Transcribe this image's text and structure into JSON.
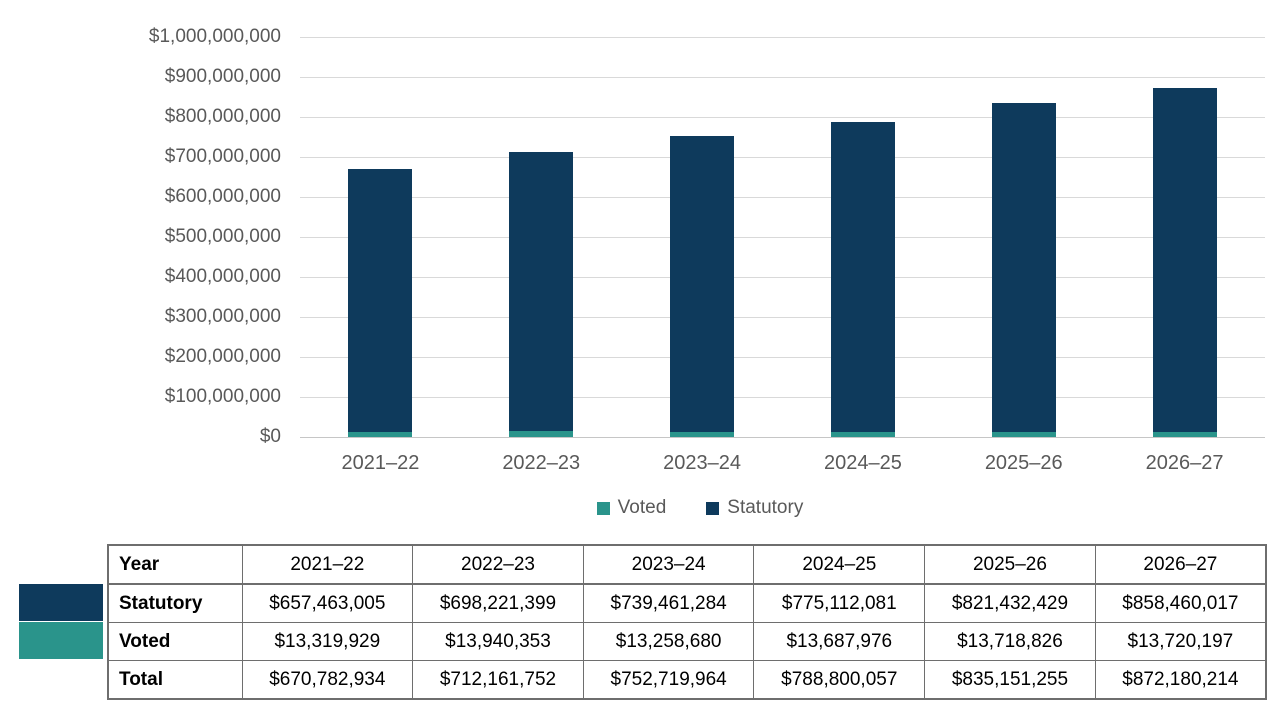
{
  "colors": {
    "statutory": "#0e3a5c",
    "voted": "#2a948b",
    "axis_text": "#595959",
    "gridline": "#d9d9d9",
    "table_border": "#6e6e6e"
  },
  "chart_data": {
    "type": "bar",
    "stacked": true,
    "grid": true,
    "legend_position": "bottom",
    "title": "",
    "xlabel": "",
    "ylabel": "",
    "ylim": [
      0,
      1000000000
    ],
    "y_tick_labels": [
      "$1,000,000,000",
      "$900,000,000",
      "$800,000,000",
      "$700,000,000",
      "$600,000,000",
      "$500,000,000",
      "$400,000,000",
      "$300,000,000",
      "$200,000,000",
      "$100,000,000",
      "$0"
    ],
    "categories": [
      "2021–22",
      "2022–23",
      "2023–24",
      "2024–25",
      "2025–26",
      "2026–27"
    ],
    "series": [
      {
        "name": "Voted",
        "color": "#2a948b",
        "values": [
          13319929,
          13940353,
          13258680,
          13687976,
          13718826,
          13720197
        ]
      },
      {
        "name": "Statutory",
        "color": "#0e3a5c",
        "values": [
          657463005,
          698221399,
          739461284,
          775112081,
          821432429,
          858460017
        ]
      }
    ],
    "totals": [
      670782934,
      712161752,
      752719964,
      788800057,
      835151255,
      872180214
    ]
  },
  "legend": {
    "items": [
      {
        "label": "Voted",
        "color": "#2a948b"
      },
      {
        "label": "Statutory",
        "color": "#0e3a5c"
      }
    ]
  },
  "table": {
    "header": {
      "label": "Year",
      "years": [
        "2021–22",
        "2022–23",
        "2023–24",
        "2024–25",
        "2025–26",
        "2026–27"
      ]
    },
    "rows": [
      {
        "label": "Statutory",
        "swatch_color": "#0e3a5c",
        "values": [
          "$657,463,005",
          "$698,221,399",
          "$739,461,284",
          "$775,112,081",
          "$821,432,429",
          "$858,460,017"
        ]
      },
      {
        "label": "Voted",
        "swatch_color": "#2a948b",
        "values": [
          "$13,319,929",
          "$13,940,353",
          "$13,258,680",
          "$13,687,976",
          "$13,718,826",
          "$13,720,197"
        ]
      },
      {
        "label": "Total",
        "swatch_color": null,
        "values": [
          "$670,782,934",
          "$712,161,752",
          "$752,719,964",
          "$788,800,057",
          "$835,151,255",
          "$872,180,214"
        ]
      }
    ]
  }
}
